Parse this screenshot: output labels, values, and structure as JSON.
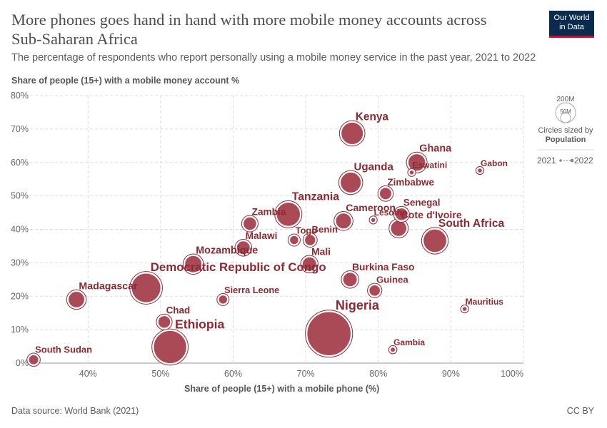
{
  "header": {
    "title": "More phones goes hand in hand with more mobile money accounts across Sub-Saharan Africa",
    "subtitle": "The percentage of respondents who report personally using a mobile money service in the past year, 2021 to 2022",
    "logo_line1": "Our World",
    "logo_line2": "in Data"
  },
  "footer": {
    "source_label": "Data source:",
    "source_value": "World Bank (2021)",
    "license": "CC BY"
  },
  "legend": {
    "size_large": "200M",
    "size_small": "50M",
    "size_caption_1": "Circles sized by",
    "size_caption_2": "Population",
    "time_start": "2021",
    "time_end": "2022"
  },
  "colors": {
    "point": "#9a2a38",
    "label": "#8b2a32",
    "grid": "#dddddd",
    "logo_bg": "#0b2b4e",
    "logo_accent": "#c8102e"
  },
  "chart_data": {
    "type": "scatter",
    "title": "More phones goes hand in hand with more mobile money accounts across Sub-Saharan Africa",
    "xlabel": "Share of people (15+) with a mobile phone (%)",
    "ylabel": "Share of people (15+) with a mobile money account %",
    "xlim": [
      32,
      100
    ],
    "ylim": [
      0,
      80
    ],
    "x_ticks": [
      "40%",
      "50%",
      "60%",
      "70%",
      "80%",
      "90%",
      "100%"
    ],
    "x_tick_values": [
      40,
      50,
      60,
      70,
      80,
      90,
      100
    ],
    "y_ticks": [
      "0%",
      "10%",
      "20%",
      "30%",
      "40%",
      "50%",
      "60%",
      "70%",
      "80%"
    ],
    "y_tick_values": [
      0,
      10,
      20,
      30,
      40,
      50,
      60,
      70,
      80
    ],
    "grid": true,
    "legend_position": "right",
    "points": [
      {
        "name": "Kenya",
        "x": 76.4,
        "y": 68.7,
        "pop": 54
      },
      {
        "name": "Ghana",
        "x": 85.3,
        "y": 60.0,
        "pop": 33
      },
      {
        "name": "Eswatini",
        "x": 84.6,
        "y": 57.0,
        "pop": 1.2
      },
      {
        "name": "Gabon",
        "x": 94.0,
        "y": 57.6,
        "pop": 2.3
      },
      {
        "name": "Uganda",
        "x": 76.2,
        "y": 54.0,
        "pop": 47
      },
      {
        "name": "Zimbabwe",
        "x": 81.0,
        "y": 50.7,
        "pop": 16
      },
      {
        "name": "Lesotho",
        "x": 79.3,
        "y": 42.8,
        "pop": 2.3
      },
      {
        "name": "Senegal",
        "x": 83.2,
        "y": 44.5,
        "pop": 17
      },
      {
        "name": "Cameroon",
        "x": 75.2,
        "y": 42.5,
        "pop": 27
      },
      {
        "name": "Cote d'Ivoire",
        "x": 82.8,
        "y": 40.3,
        "pop": 28
      },
      {
        "name": "South Africa",
        "x": 87.8,
        "y": 36.6,
        "pop": 60
      },
      {
        "name": "Tanzania",
        "x": 67.6,
        "y": 44.5,
        "pop": 63
      },
      {
        "name": "Zambia",
        "x": 62.3,
        "y": 41.7,
        "pop": 19
      },
      {
        "name": "Togo",
        "x": 68.4,
        "y": 36.8,
        "pop": 8.6
      },
      {
        "name": "Benin",
        "x": 70.6,
        "y": 36.8,
        "pop": 13
      },
      {
        "name": "Malawi",
        "x": 61.4,
        "y": 34.5,
        "pop": 20
      },
      {
        "name": "Mali",
        "x": 70.5,
        "y": 29.6,
        "pop": 22
      },
      {
        "name": "Mozambique",
        "x": 54.5,
        "y": 29.6,
        "pop": 32
      },
      {
        "name": "Democratic Republic of Congo",
        "x": 48.0,
        "y": 22.5,
        "pop": 95
      },
      {
        "name": "Madagascar",
        "x": 38.4,
        "y": 19.0,
        "pop": 29
      },
      {
        "name": "Sierra Leone",
        "x": 58.6,
        "y": 19.0,
        "pop": 8.4
      },
      {
        "name": "Burkina Faso",
        "x": 76.1,
        "y": 25.0,
        "pop": 22
      },
      {
        "name": "Guinea",
        "x": 79.5,
        "y": 21.7,
        "pop": 13.5
      },
      {
        "name": "Mauritius",
        "x": 91.9,
        "y": 16.2,
        "pop": 1.3
      },
      {
        "name": "Chad",
        "x": 50.5,
        "y": 12.3,
        "pop": 17
      },
      {
        "name": "Nigeria",
        "x": 73.2,
        "y": 8.8,
        "pop": 213
      },
      {
        "name": "Ethiopia",
        "x": 51.3,
        "y": 4.8,
        "pop": 120
      },
      {
        "name": "Gambia",
        "x": 82.0,
        "y": 4.0,
        "pop": 2.6
      },
      {
        "name": "South Sudan",
        "x": 32.5,
        "y": 1.0,
        "pop": 10.7
      }
    ]
  }
}
